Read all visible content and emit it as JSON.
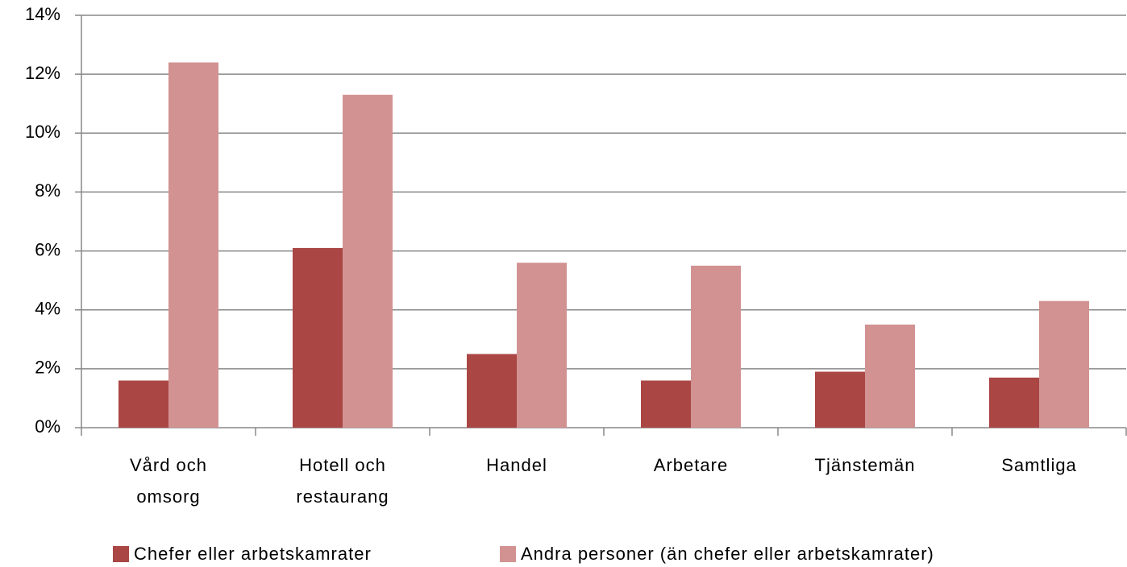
{
  "chart_data": {
    "type": "bar",
    "categories": [
      "Vård och omsorg",
      "Hotell och restaurang",
      "Handel",
      "Arbetare",
      "Tjänstemän",
      "Samtliga"
    ],
    "series": [
      {
        "name": "Chefer eller arbetskamrater",
        "color": "#aa4644",
        "values": [
          1.6,
          6.1,
          2.5,
          1.6,
          1.9,
          1.7
        ]
      },
      {
        "name": "Andra personer (än chefer eller arbetskamrater)",
        "color": "#d29292",
        "values": [
          12.4,
          11.3,
          5.6,
          5.5,
          3.5,
          4.3
        ]
      }
    ],
    "ylim": [
      0,
      14
    ],
    "yticks": [
      {
        "value": 0,
        "label": "0%"
      },
      {
        "value": 2,
        "label": "2%"
      },
      {
        "value": 4,
        "label": "4%"
      },
      {
        "value": 6,
        "label": "6%"
      },
      {
        "value": 8,
        "label": "8%"
      },
      {
        "value": 10,
        "label": "10%"
      },
      {
        "value": 12,
        "label": "12%"
      },
      {
        "value": 14,
        "label": "14%"
      }
    ],
    "grid": true,
    "legend": "bottom"
  }
}
